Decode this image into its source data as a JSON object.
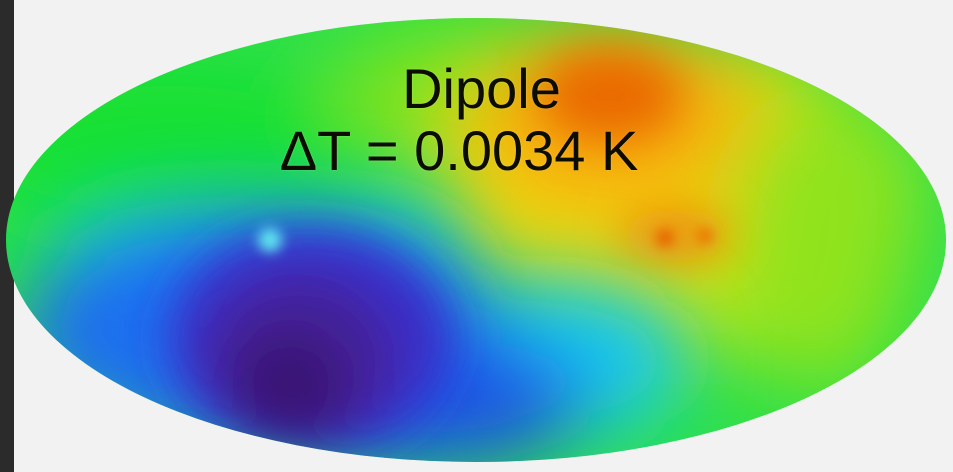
{
  "map": {
    "title": "Dipole",
    "value_line": "ΔT = 0.0034 K"
  },
  "colors": {
    "page_background": "#f2f2f2",
    "left_bar": "#2b2b2b",
    "label_text": "#0c0c00",
    "hot_region": "#e25a06",
    "warm_region": "#f6b107",
    "mid_region": "#a8e417",
    "green_region": "#21e23b",
    "cyan_region": "#13cfee",
    "blue_region": "#1a45e6",
    "cold_region": "#3c1a8c"
  }
}
